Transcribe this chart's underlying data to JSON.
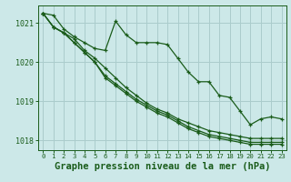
{
  "background_color": "#cce8e8",
  "grid_color": "#aacccc",
  "line_color": "#1a5c1a",
  "title": "Graphe pression niveau de la mer (hPa)",
  "ylim": [
    1017.75,
    1021.45
  ],
  "xlim": [
    -0.5,
    23.5
  ],
  "yticks": [
    1018,
    1019,
    1020,
    1021
  ],
  "xticks": [
    0,
    1,
    2,
    3,
    4,
    5,
    6,
    7,
    8,
    9,
    10,
    11,
    12,
    13,
    14,
    15,
    16,
    17,
    18,
    19,
    20,
    21,
    22,
    23
  ],
  "series": [
    [
      1021.25,
      1021.2,
      1020.85,
      1020.65,
      1020.5,
      1020.35,
      1020.3,
      1021.05,
      1020.7,
      1020.5,
      1020.5,
      1020.5,
      1020.45,
      1020.1,
      1019.75,
      1019.5,
      1019.5,
      1019.15,
      1019.1,
      1018.75,
      1018.4,
      1018.55,
      1018.6,
      1018.55
    ],
    [
      1021.25,
      1020.9,
      1020.75,
      1020.6,
      1020.3,
      1020.1,
      1019.85,
      1019.6,
      1019.35,
      1019.15,
      1018.95,
      1018.8,
      1018.7,
      1018.55,
      1018.45,
      1018.35,
      1018.25,
      1018.2,
      1018.15,
      1018.1,
      1018.05,
      1018.05,
      1018.05,
      1018.05
    ],
    [
      1021.25,
      1020.9,
      1020.75,
      1020.5,
      1020.25,
      1020.0,
      1019.65,
      1019.45,
      1019.25,
      1019.05,
      1018.9,
      1018.75,
      1018.65,
      1018.5,
      1018.35,
      1018.25,
      1018.15,
      1018.1,
      1018.05,
      1018.0,
      1017.95,
      1017.95,
      1017.95,
      1017.95
    ],
    [
      1021.25,
      1020.9,
      1020.75,
      1020.5,
      1020.25,
      1020.0,
      1019.6,
      1019.4,
      1019.2,
      1019.0,
      1018.85,
      1018.7,
      1018.6,
      1018.45,
      1018.3,
      1018.2,
      1018.1,
      1018.05,
      1018.0,
      1017.95,
      1017.9,
      1017.9,
      1017.9,
      1017.9
    ]
  ],
  "marker": "+",
  "markersize": 3.5,
  "linewidth": 0.9,
  "title_fontsize": 7.5,
  "xtick_fontsize": 5.2,
  "ytick_fontsize": 6.0
}
